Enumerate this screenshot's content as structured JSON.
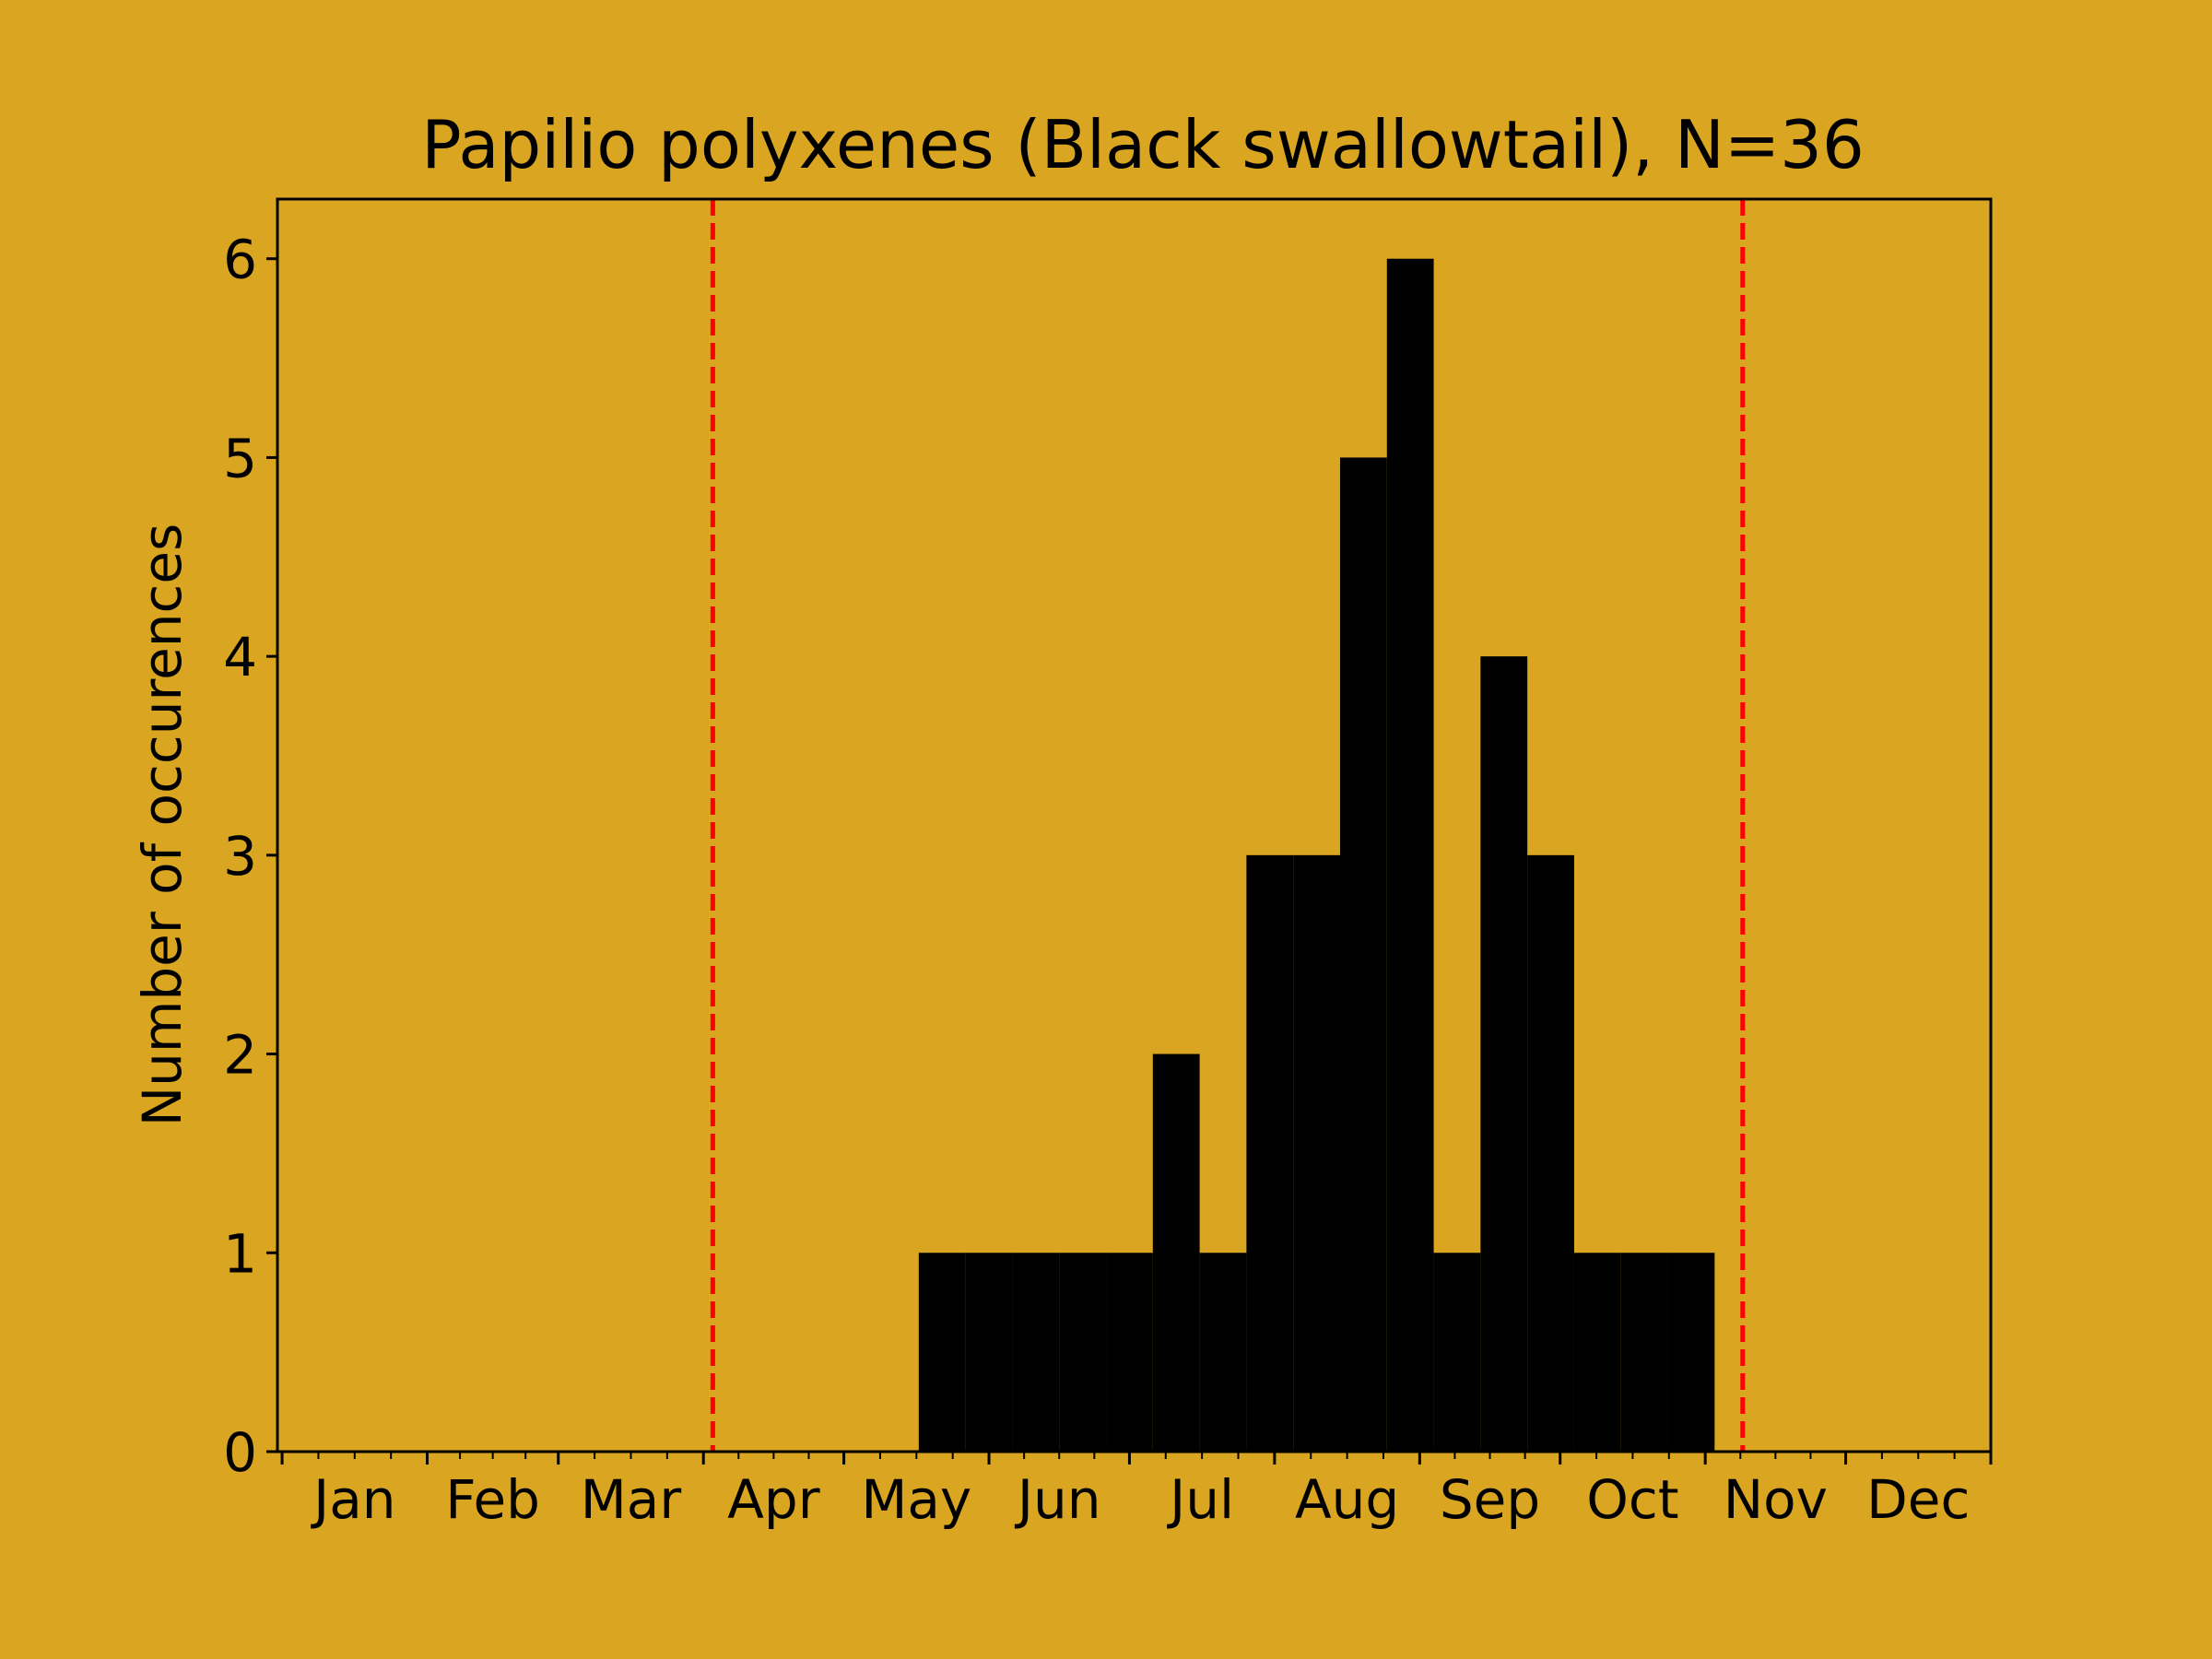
{
  "chart_data": {
    "type": "bar",
    "title": "Papilio polyxenes (Black swallowtail), N=36",
    "xlabel": "",
    "ylabel": "Number of occurences",
    "ylim": [
      0,
      6.3
    ],
    "yticks": [
      0,
      1,
      2,
      3,
      4,
      5,
      6
    ],
    "month_labels": [
      "Jan",
      "Feb",
      "Mar",
      "Apr",
      "May",
      "Jun",
      "Jul",
      "Aug",
      "Sep",
      "Oct",
      "Nov",
      "Dec"
    ],
    "xaxis": "day of year, 1 to 365",
    "bin_edges": [
      137,
      147,
      157,
      167,
      177,
      187,
      197,
      207,
      217,
      227,
      237,
      247,
      257,
      267,
      277,
      287,
      297,
      307
    ],
    "values": [
      1,
      1,
      1,
      1,
      1,
      2,
      1,
      3,
      3,
      5,
      6,
      1,
      4,
      3,
      1,
      1,
      1
    ],
    "reference_lines": [
      {
        "x": 93,
        "color": "#FF0000",
        "style": "dashed"
      },
      {
        "x": 313,
        "color": "#FF0000",
        "style": "dashed"
      }
    ],
    "bar_color": "#000000",
    "background_color": "#DAA520",
    "grid": false
  }
}
